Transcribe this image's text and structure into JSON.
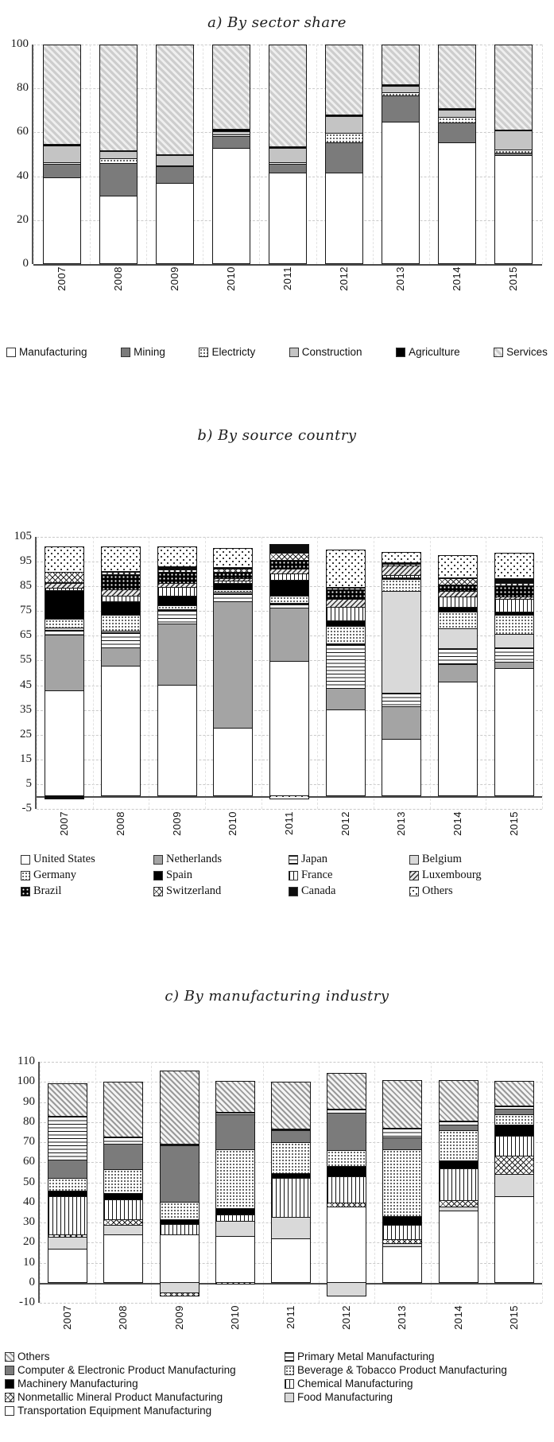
{
  "chart_data": [
    {
      "type": "bar",
      "stacked": true,
      "title": "a) By sector share",
      "categories": [
        "2007",
        "2008",
        "2009",
        "2010",
        "2011",
        "2012",
        "2013",
        "2014",
        "2015"
      ],
      "axis": {
        "min": 0,
        "max": 100,
        "ticks": [
          0,
          20,
          40,
          60,
          80,
          100
        ]
      },
      "grid": true,
      "legend_position": "bottom",
      "series": [
        {
          "name": "Manufacturing",
          "pattern": "white",
          "values": [
            39.5,
            31,
            37,
            53,
            41.5,
            41.5,
            65,
            55.5,
            49.5
          ]
        },
        {
          "name": "Mining",
          "pattern": "darkgray",
          "values": [
            6,
            15,
            7.5,
            5.5,
            4,
            14,
            12,
            9,
            1.2
          ]
        },
        {
          "name": "Electricty",
          "pattern": "dots-fine",
          "values": [
            1,
            2,
            0.5,
            0.5,
            1,
            4.5,
            1.5,
            2.5,
            1.5
          ]
        },
        {
          "name": "Construction",
          "pattern": "lightgray",
          "values": [
            7.5,
            3.5,
            4.5,
            1.5,
            6.5,
            7.5,
            3,
            3.5,
            8.8
          ]
        },
        {
          "name": "Agriculture",
          "pattern": "black",
          "values": [
            0.7,
            0.5,
            0.3,
            1,
            0.5,
            0.7,
            0.7,
            0.8,
            0.3
          ]
        },
        {
          "name": "Services",
          "pattern": "diag-light",
          "values": [
            45.3,
            48,
            50.2,
            38.5,
            46.5,
            31.8,
            17.8,
            28.7,
            38.7
          ]
        }
      ]
    },
    {
      "type": "bar",
      "stacked": true,
      "title": "b) By source country",
      "categories": [
        "2007",
        "2008",
        "2009",
        "2010",
        "2011",
        "2012",
        "2013",
        "2014",
        "2015"
      ],
      "axis": {
        "min": -5,
        "max": 105,
        "ticks": [
          -5,
          5,
          15,
          25,
          35,
          45,
          55,
          65,
          75,
          85,
          95,
          105
        ]
      },
      "grid": true,
      "legend_position": "bottom",
      "series": [
        {
          "name": "United States",
          "pattern": "white",
          "values": [
            43,
            53,
            45,
            27.5,
            55,
            35,
            23,
            46.5,
            52
          ]
        },
        {
          "name": "Netherlands",
          "pattern": "gray",
          "values": [
            22.5,
            7.5,
            25,
            51.5,
            21.5,
            9,
            13.5,
            7,
            2.5
          ]
        },
        {
          "name": "Japan",
          "pattern": "hlines",
          "values": [
            2,
            6,
            5.5,
            3.5,
            1.5,
            17.5,
            5.5,
            6.5,
            6
          ]
        },
        {
          "name": "Belgium",
          "pattern": "lightgray2",
          "values": [
            1,
            0.5,
            0.5,
            0.5,
            0.5,
            0.5,
            41.5,
            8,
            5.5
          ]
        },
        {
          "name": "Germany",
          "pattern": "dots-fine",
          "values": [
            3.5,
            6.5,
            1.5,
            1,
            3,
            7,
            4.8,
            7,
            7.5
          ]
        },
        {
          "name": "Spain",
          "pattern": "black",
          "values": [
            11.5,
            5.5,
            4,
            2.5,
            6.5,
            2.5,
            0.5,
            2,
            1.5
          ]
        },
        {
          "name": "France",
          "pattern": "vlines",
          "values": [
            1,
            2.5,
            3.5,
            1,
            2.5,
            5.5,
            1,
            4,
            5
          ]
        },
        {
          "name": "Luxembourg",
          "pattern": "diag-dark",
          "values": [
            2,
            2.5,
            1.5,
            1,
            2,
            3,
            4,
            2.5,
            1
          ]
        },
        {
          "name": "Brazil",
          "pattern": "blackdots",
          "values": [
            0.5,
            6,
            4.5,
            2.5,
            3.5,
            4,
            0,
            2.5,
            4.5
          ]
        },
        {
          "name": "Switzerland",
          "pattern": "cross",
          "values": [
            4,
            1,
            1,
            1.5,
            3,
            0.5,
            0.7,
            2.5,
            1
          ]
        },
        {
          "name": "Canada",
          "pattern": "black2",
          "values": [
            -1,
            0.5,
            1.5,
            0.5,
            3,
            0.5,
            0.5,
            0.5,
            2
          ]
        },
        {
          "name": "Others",
          "pattern": "dots-sparse",
          "values": [
            10,
            9.5,
            7.5,
            7.5,
            -1,
            15,
            3.8,
            8.5,
            10
          ]
        }
      ]
    },
    {
      "type": "bar",
      "stacked": true,
      "title": "c) By manufacturing industry",
      "categories": [
        "2007",
        "2008",
        "2009",
        "2010",
        "2011",
        "2012",
        "2013",
        "2014",
        "2015"
      ],
      "axis": {
        "min": -10,
        "max": 110,
        "ticks": [
          -10,
          0,
          10,
          20,
          30,
          40,
          50,
          60,
          70,
          80,
          90,
          100,
          110
        ]
      },
      "grid": true,
      "legend_position": "bottom",
      "legend_order": "reversed",
      "series": [
        {
          "name": "Transportation Equipment Manufacturing",
          "pattern": "white",
          "values": [
            16.5,
            24,
            24,
            23,
            22,
            38,
            18,
            36,
            43
          ]
        },
        {
          "name": "Food Manufacturing",
          "pattern": "lightgray2",
          "values": [
            6,
            4.5,
            -5,
            7.5,
            10.5,
            -7,
            1.5,
            2,
            11
          ]
        },
        {
          "name": "Nonmetallic Mineral Product Manufacturing",
          "pattern": "cross",
          "values": [
            1.5,
            3,
            -2,
            -1,
            0,
            2,
            2,
            3,
            9.5
          ]
        },
        {
          "name": "Chemical Manufacturing",
          "pattern": "vlines",
          "values": [
            19,
            10,
            5,
            3.5,
            19.5,
            13,
            7,
            16,
            10
          ]
        },
        {
          "name": "Machinery Manufacturing",
          "pattern": "black",
          "values": [
            3,
            3,
            2.5,
            3,
            2.5,
            5,
            4.5,
            4,
            5.5
          ]
        },
        {
          "name": "Beverage & Tobacco Product Manufacturing",
          "pattern": "dots-fine",
          "values": [
            6,
            12,
            8.5,
            29.5,
            15.5,
            8,
            33.5,
            15,
            5
          ]
        },
        {
          "name": "Computer & Electronic Product Manufacturing",
          "pattern": "darkgray",
          "values": [
            9.5,
            13,
            28.5,
            17.5,
            6,
            19,
            6,
            3,
            3
          ]
        },
        {
          "name": "Primary Metal Manufacturing",
          "pattern": "hlines",
          "values": [
            22,
            3.5,
            1,
            1.5,
            1,
            2,
            5,
            2,
            1.5
          ]
        },
        {
          "name": "Others",
          "pattern": "diag-dense",
          "values": [
            16,
            27,
            36,
            15,
            23,
            17.5,
            23.5,
            20,
            12
          ]
        }
      ]
    }
  ]
}
